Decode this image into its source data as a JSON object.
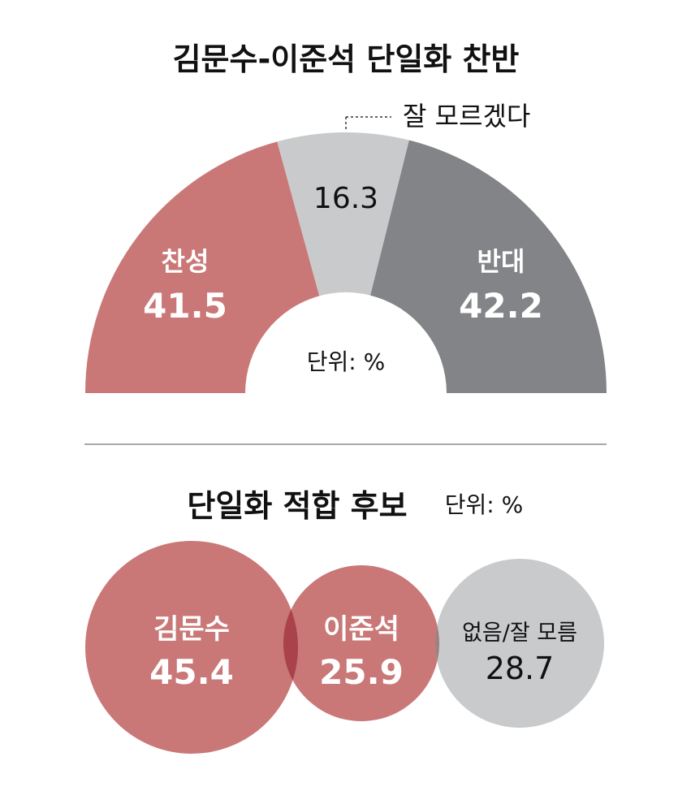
{
  "chart_data": [
    {
      "type": "pie",
      "title": "김문수-이준석 단일화 찬반",
      "unit_note": "단위: %",
      "categories": [
        "찬성",
        "잘 모르겠다",
        "반대"
      ],
      "values": [
        41.5,
        16.3,
        42.2
      ],
      "value_labels": [
        "41.5",
        "16.3",
        "42.2"
      ],
      "colors": [
        "#c97877",
        "#c9cacc",
        "#838487"
      ]
    },
    {
      "type": "scatter",
      "title": "단일화 적합 후보",
      "unit_note": "단위: %",
      "categories": [
        "김문수",
        "이준석",
        "없음/잘 모름"
      ],
      "values": [
        45.4,
        25.9,
        28.7
      ],
      "value_labels": [
        "45.4",
        "25.9",
        "28.7"
      ],
      "colors": [
        "#c97877",
        "#c97877",
        "#c9cacc"
      ],
      "overlap_color": "#a9424a"
    }
  ]
}
